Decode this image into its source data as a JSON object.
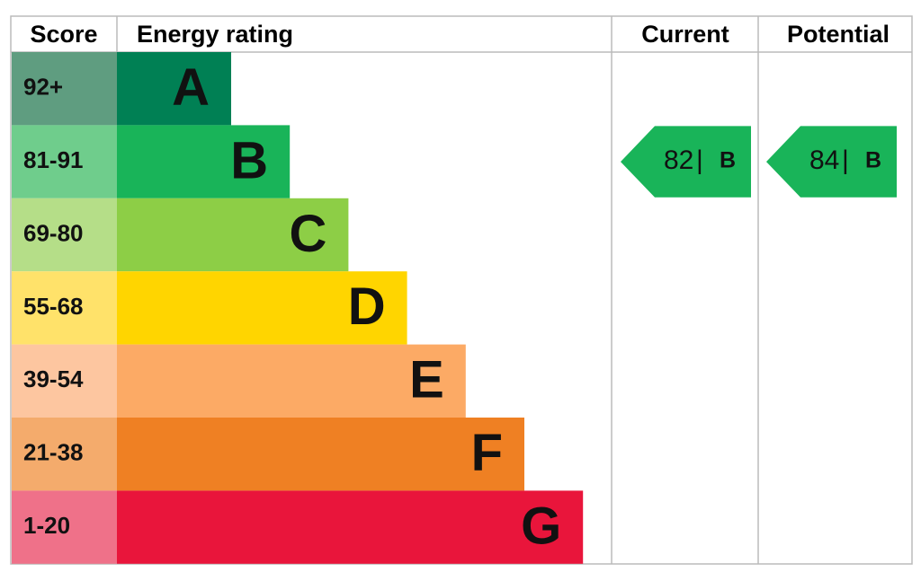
{
  "header": {
    "score": "Score",
    "energy_rating": "Energy rating",
    "current": "Current",
    "potential": "Potential"
  },
  "bands": [
    {
      "score": "92+",
      "letter": "A",
      "color": "#008054",
      "score_color": "#5f9d80"
    },
    {
      "score": "81-91",
      "letter": "B",
      "color": "#19b459",
      "score_color": "#6fcd8c"
    },
    {
      "score": "69-80",
      "letter": "C",
      "color": "#8dce46",
      "score_color": "#b5de88"
    },
    {
      "score": "55-68",
      "letter": "D",
      "color": "#ffd500",
      "score_color": "#ffe26a"
    },
    {
      "score": "39-54",
      "letter": "E",
      "color": "#fcaa65",
      "score_color": "#fdc6a0"
    },
    {
      "score": "21-38",
      "letter": "F",
      "color": "#ef8023",
      "score_color": "#f4ab6c"
    },
    {
      "score": "1-20",
      "letter": "G",
      "color": "#e9153b",
      "score_color": "#ef7189"
    }
  ],
  "current": {
    "value": 82,
    "separator": "|",
    "letter": "B"
  },
  "potential": {
    "value": 84,
    "separator": "|",
    "letter": "B"
  }
}
